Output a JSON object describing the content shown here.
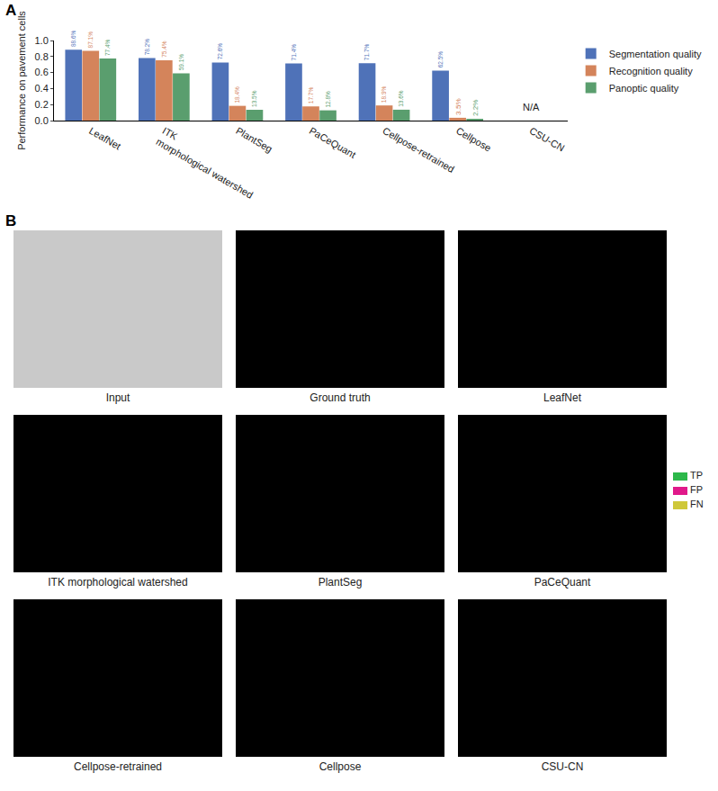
{
  "chart_data": {
    "type": "bar",
    "annotations": [
      {
        "text": "A"
      },
      {
        "text": "N/A",
        "category": "CSU-CN"
      }
    ],
    "y_label": "Performance on pavement cells",
    "categories": [
      "LeafNet",
      "ITK morphological watershed",
      "PlantSeg",
      "PaCeQuant",
      "Cellpose-retrained",
      "Cellpose",
      "CSU-CN"
    ],
    "series": [
      {
        "name": "Segmentation quality",
        "color": "#4f72b8",
        "values": [
          0.886,
          0.782,
          0.726,
          0.714,
          0.717,
          0.625,
          null
        ],
        "value_labels": [
          "88.6%",
          "78.2%",
          "72.6%",
          "71.4%",
          "71.7%",
          "62.5%",
          null
        ]
      },
      {
        "name": "Recognition quality",
        "color": "#d4845b",
        "values": [
          0.871,
          0.754,
          0.184,
          0.177,
          0.189,
          0.035,
          null
        ],
        "value_labels": [
          "87.1%",
          "75.4%",
          "18.4%",
          "17.7%",
          "18.9%",
          "3.5%",
          null
        ]
      },
      {
        "name": "Panoptic quality",
        "color": "#5a9e6e",
        "values": [
          0.774,
          0.591,
          0.135,
          0.128,
          0.136,
          0.022,
          null
        ],
        "value_labels": [
          "77.4%",
          "59.1%",
          "13.5%",
          "12.8%",
          "13.6%",
          "2.2%",
          null
        ]
      }
    ],
    "ylim": [
      0,
      1
    ],
    "yticks": [
      {
        "value": 0,
        "label": "0.0"
      },
      0.2,
      0.4,
      0.6,
      0.8,
      {
        "value": 1,
        "label": "1.0"
      }
    ],
    "legend": "upper right",
    "data_labels": true,
    "grid": false
  },
  "panel_b": {
    "label": "B",
    "images": [
      {
        "caption": "Input"
      },
      {
        "caption": "Ground truth"
      },
      {
        "caption": "LeafNet"
      },
      {
        "caption": "ITK morphological watershed"
      },
      {
        "caption": "PlantSeg"
      },
      {
        "caption": "PaCeQuant"
      },
      {
        "caption": "Cellpose-retrained"
      },
      {
        "caption": "Cellpose"
      },
      {
        "caption": "CSU-CN"
      }
    ],
    "legend": [
      {
        "name": "TP",
        "color": "#2db84a"
      },
      {
        "name": "FP",
        "color": "#e0198a"
      },
      {
        "name": "FN",
        "color": "#cfc83a"
      }
    ]
  }
}
